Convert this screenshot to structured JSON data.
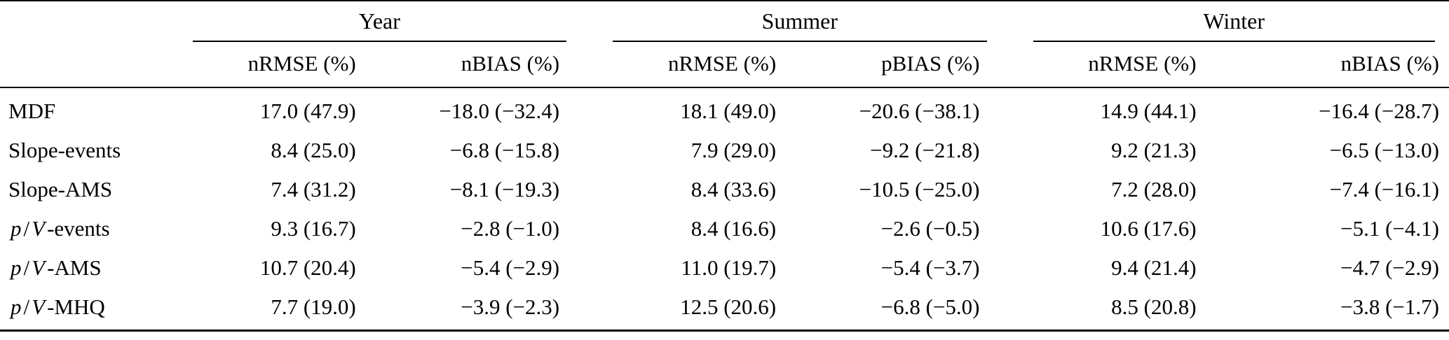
{
  "colors": {
    "background": "#ffffff",
    "text": "#000000",
    "rule": "#000000"
  },
  "table": {
    "col_groups": [
      {
        "label": "Year"
      },
      {
        "label": "Summer"
      },
      {
        "label": "Winter"
      }
    ],
    "sub_headers": [
      "nRMSE (%)",
      "nBIAS (%)",
      "nRMSE (%)",
      "pBIAS (%)",
      "nRMSE (%)",
      "nBIAS (%)"
    ],
    "rows": [
      {
        "label": [
          {
            "text": "MDF",
            "italic": false
          }
        ],
        "values": [
          "17.0 (47.9)",
          "−18.0 (−32.4)",
          "18.1 (49.0)",
          "−20.6 (−38.1)",
          "14.9 (44.1)",
          "−16.4 (−28.7)"
        ]
      },
      {
        "label": [
          {
            "text": "Slope-events",
            "italic": false
          }
        ],
        "values": [
          "8.4 (25.0)",
          "−6.8 (−15.8)",
          "7.9 (29.0)",
          "−9.2 (−21.8)",
          "9.2 (21.3)",
          "−6.5 (−13.0)"
        ]
      },
      {
        "label": [
          {
            "text": "Slope-AMS",
            "italic": false
          }
        ],
        "values": [
          "7.4 (31.2)",
          "−8.1 (−19.3)",
          "8.4 (33.6)",
          "−10.5 (−25.0)",
          "7.2 (28.0)",
          "−7.4 (−16.1)"
        ]
      },
      {
        "label": [
          {
            "text": "p",
            "italic": true
          },
          {
            "text": "/",
            "italic": false
          },
          {
            "text": "V",
            "italic": true
          },
          {
            "text": "-events",
            "italic": false
          }
        ],
        "values": [
          "9.3 (16.7)",
          "−2.8 (−1.0)",
          "8.4 (16.6)",
          "−2.6 (−0.5)",
          "10.6 (17.6)",
          "−5.1 (−4.1)"
        ]
      },
      {
        "label": [
          {
            "text": "p",
            "italic": true
          },
          {
            "text": "/",
            "italic": false
          },
          {
            "text": "V",
            "italic": true
          },
          {
            "text": "-AMS",
            "italic": false
          }
        ],
        "values": [
          "10.7 (20.4)",
          "−5.4 (−2.9)",
          "11.0 (19.7)",
          "−5.4 (−3.7)",
          "9.4 (21.4)",
          "−4.7 (−2.9)"
        ]
      },
      {
        "label": [
          {
            "text": "p",
            "italic": true
          },
          {
            "text": "/",
            "italic": false
          },
          {
            "text": "V",
            "italic": true
          },
          {
            "text": "-MHQ",
            "italic": false
          }
        ],
        "values": [
          "7.7 (19.0)",
          "−3.9 (−2.3)",
          "12.5 (20.6)",
          "−6.8 (−5.0)",
          "8.5 (20.8)",
          "−3.8 (−1.7)"
        ]
      }
    ]
  }
}
